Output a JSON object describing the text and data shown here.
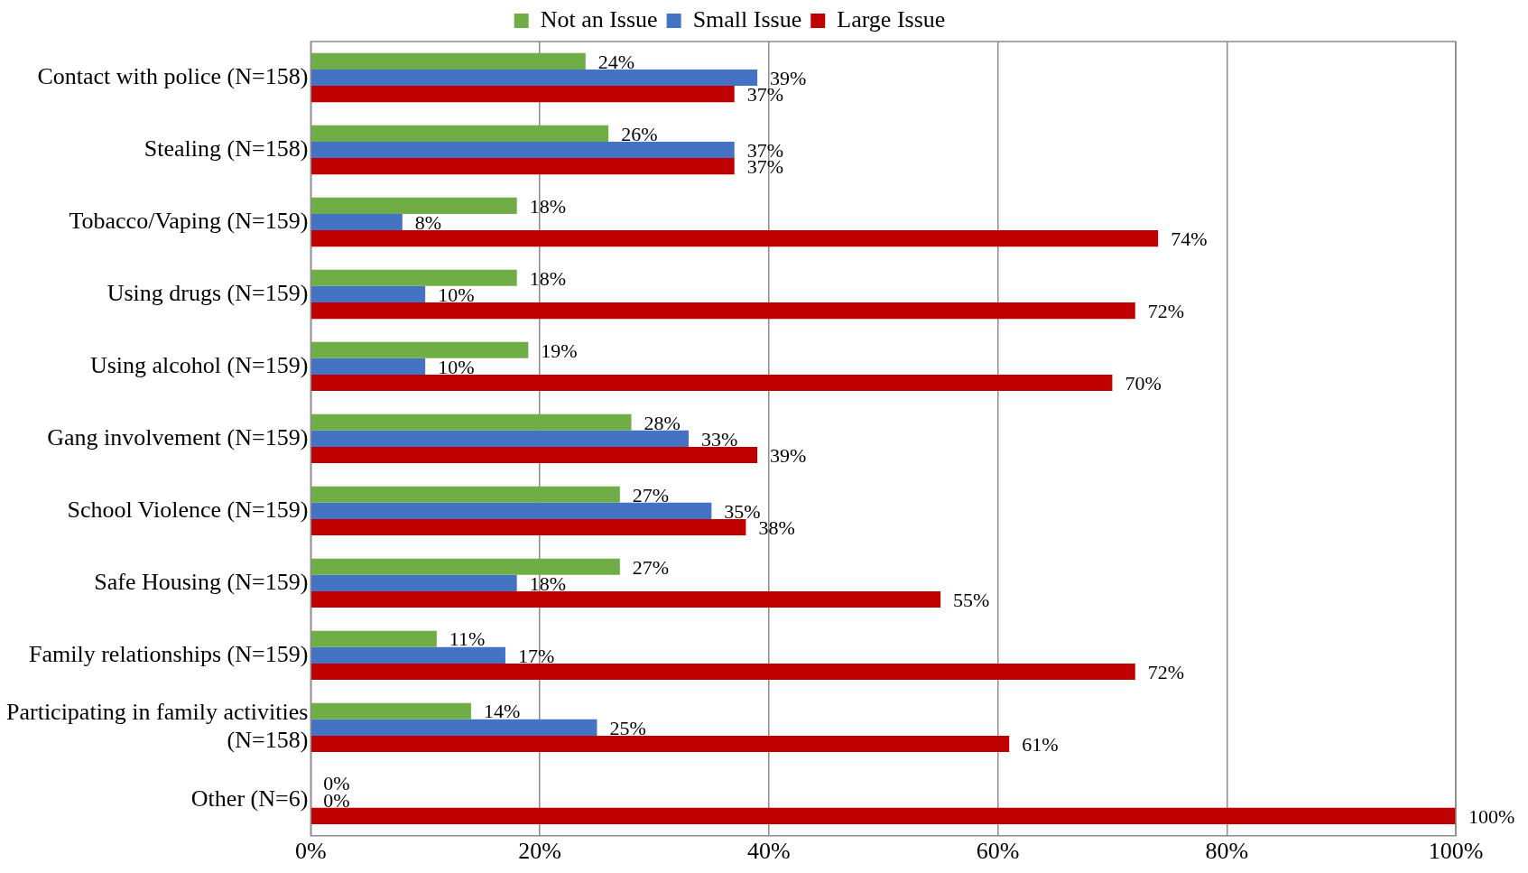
{
  "chart_data": {
    "type": "bar",
    "orientation": "horizontal",
    "categories": [
      "Contact with police (N=158)",
      "Stealing (N=158)",
      "Tobacco/Vaping (N=159)",
      "Using drugs (N=159)",
      "Using alcohol (N=159)",
      "Gang involvement (N=159)",
      "School Violence (N=159)",
      "Safe Housing (N=159)",
      "Family relationships (N=159)",
      "Participating in family activities (N=158)",
      "Other (N=6)"
    ],
    "series": [
      {
        "name": "Not an Issue",
        "color": "#70ad47",
        "values": [
          24,
          26,
          18,
          18,
          19,
          28,
          27,
          27,
          11,
          14,
          0
        ],
        "value_labels": [
          "24%",
          "26%",
          "18%",
          "18%",
          "19%",
          "28%",
          "27%",
          "27%",
          "11%",
          "14%",
          "0%"
        ]
      },
      {
        "name": "Small Issue",
        "color": "#4472c4",
        "values": [
          39,
          37,
          8,
          10,
          10,
          33,
          35,
          18,
          17,
          25,
          0
        ],
        "value_labels": [
          "39%",
          "37%",
          "8%",
          "10%",
          "10%",
          "33%",
          "35%",
          "18%",
          "17%",
          "25%",
          "0%"
        ]
      },
      {
        "name": "Large Issue",
        "color": "#c00000",
        "values": [
          37,
          37,
          74,
          72,
          70,
          39,
          38,
          55,
          72,
          61,
          100
        ],
        "value_labels": [
          "37%",
          "37%",
          "74%",
          "72%",
          "70%",
          "39%",
          "38%",
          "55%",
          "72%",
          "61%",
          "100%"
        ]
      }
    ],
    "xlim": [
      0,
      100
    ],
    "xticks": [
      {
        "value": 0,
        "label": "0%"
      },
      {
        "value": 20,
        "label": "20%"
      },
      {
        "value": 40,
        "label": "40%"
      },
      {
        "value": 60,
        "label": "60%"
      },
      {
        "value": 80,
        "label": "80%"
      },
      {
        "value": 100,
        "label": "100%"
      }
    ],
    "grid": "x",
    "legend": "top"
  }
}
